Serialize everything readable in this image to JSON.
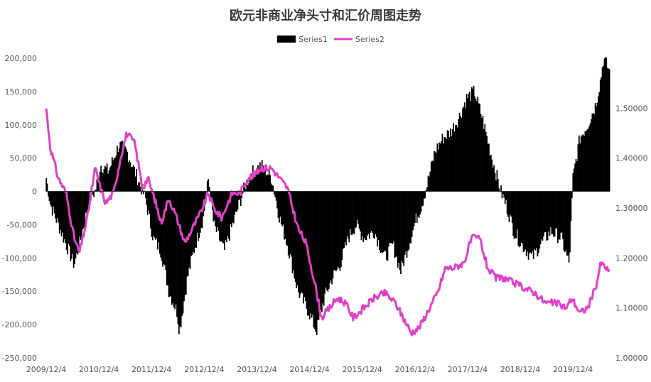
{
  "chart_data": {
    "type": "bar",
    "title": "欧元非商业净头寸和汇价周图走势",
    "legend_position": "top-center",
    "grid": false,
    "x_ticks": [
      "2009/12/4",
      "2010/12/4",
      "2011/12/4",
      "2012/12/4",
      "2013/12/4",
      "2014/12/4",
      "2015/12/4",
      "2016/12/4",
      "2017/12/4",
      "2018/12/4",
      "2019/12/4"
    ],
    "y_left": {
      "range": [
        -250000,
        200000
      ],
      "ticks": [
        200000,
        150000,
        100000,
        50000,
        0,
        -50000,
        -100000,
        -150000,
        -200000,
        -250000
      ],
      "tick_labels": [
        "200,000",
        "150,000",
        "100,000",
        "50,000",
        "0",
        "-50,000",
        "-100,000",
        "-150,000",
        "-200,000",
        "-250,000"
      ]
    },
    "y_right": {
      "range": [
        1.0,
        1.6
      ],
      "ticks": [
        1.5,
        1.4,
        1.3,
        1.2,
        1.1,
        1.0
      ],
      "tick_labels": [
        "1.50000",
        "1.40000",
        "1.30000",
        "1.20000",
        "1.10000",
        "1.00000"
      ]
    },
    "series": [
      {
        "name": "Series1",
        "kind": "bar",
        "axis": "left",
        "color": "#000000",
        "keypoints": [
          [
            2009.92,
            20000
          ],
          [
            2010.0,
            -20000
          ],
          [
            2010.2,
            -60000
          ],
          [
            2010.45,
            -110000
          ],
          [
            2010.55,
            -80000
          ],
          [
            2010.75,
            -10000
          ],
          [
            2010.85,
            0
          ],
          [
            2010.95,
            40000
          ],
          [
            2011.1,
            30000
          ],
          [
            2011.3,
            70000
          ],
          [
            2011.45,
            60000
          ],
          [
            2011.6,
            30000
          ],
          [
            2011.8,
            -10000
          ],
          [
            2011.95,
            -70000
          ],
          [
            2012.1,
            -90000
          ],
          [
            2012.25,
            -150000
          ],
          [
            2012.4,
            -180000
          ],
          [
            2012.45,
            -210000
          ],
          [
            2012.6,
            -130000
          ],
          [
            2012.75,
            -80000
          ],
          [
            2012.9,
            -40000
          ],
          [
            2013.0,
            20000
          ],
          [
            2013.1,
            -50000
          ],
          [
            2013.3,
            -90000
          ],
          [
            2013.5,
            -40000
          ],
          [
            2013.7,
            10000
          ],
          [
            2013.85,
            30000
          ],
          [
            2014.0,
            40000
          ],
          [
            2014.2,
            20000
          ],
          [
            2014.35,
            -40000
          ],
          [
            2014.5,
            -80000
          ],
          [
            2014.7,
            -150000
          ],
          [
            2014.9,
            -180000
          ],
          [
            2015.05,
            -210000
          ],
          [
            2015.2,
            -160000
          ],
          [
            2015.35,
            -130000
          ],
          [
            2015.5,
            -110000
          ],
          [
            2015.65,
            -70000
          ],
          [
            2015.8,
            -50000
          ],
          [
            2015.95,
            -70000
          ],
          [
            2016.15,
            -60000
          ],
          [
            2016.35,
            -100000
          ],
          [
            2016.5,
            -80000
          ],
          [
            2016.65,
            -120000
          ],
          [
            2016.8,
            -80000
          ],
          [
            2016.95,
            -40000
          ],
          [
            2017.05,
            -20000
          ],
          [
            2017.15,
            10000
          ],
          [
            2017.3,
            60000
          ],
          [
            2017.45,
            80000
          ],
          [
            2017.6,
            90000
          ],
          [
            2017.75,
            110000
          ],
          [
            2017.9,
            140000
          ],
          [
            2018.05,
            150000
          ],
          [
            2018.2,
            110000
          ],
          [
            2018.35,
            60000
          ],
          [
            2018.45,
            30000
          ],
          [
            2018.55,
            0
          ],
          [
            2018.65,
            -20000
          ],
          [
            2018.8,
            -60000
          ],
          [
            2018.95,
            -80000
          ],
          [
            2019.15,
            -100000
          ],
          [
            2019.3,
            -80000
          ],
          [
            2019.5,
            -60000
          ],
          [
            2019.7,
            -70000
          ],
          [
            2019.85,
            -110000
          ],
          [
            2019.92,
            20000
          ],
          [
            2020.05,
            80000
          ],
          [
            2020.2,
            100000
          ],
          [
            2020.35,
            130000
          ],
          [
            2020.45,
            170000
          ],
          [
            2020.5,
            200000
          ],
          [
            2020.62,
            180000
          ]
        ]
      },
      {
        "name": "Series2",
        "kind": "line",
        "axis": "right",
        "color": "#e040c8",
        "keypoints": [
          [
            2009.92,
            1.5
          ],
          [
            2010.0,
            1.42
          ],
          [
            2010.15,
            1.36
          ],
          [
            2010.3,
            1.33
          ],
          [
            2010.45,
            1.24
          ],
          [
            2010.55,
            1.21
          ],
          [
            2010.7,
            1.28
          ],
          [
            2010.85,
            1.38
          ],
          [
            2010.95,
            1.34
          ],
          [
            2011.05,
            1.31
          ],
          [
            2011.2,
            1.33
          ],
          [
            2011.35,
            1.41
          ],
          [
            2011.45,
            1.45
          ],
          [
            2011.6,
            1.43
          ],
          [
            2011.75,
            1.34
          ],
          [
            2011.85,
            1.36
          ],
          [
            2012.0,
            1.31
          ],
          [
            2012.1,
            1.27
          ],
          [
            2012.25,
            1.32
          ],
          [
            2012.4,
            1.28
          ],
          [
            2012.55,
            1.23
          ],
          [
            2012.7,
            1.26
          ],
          [
            2012.85,
            1.29
          ],
          [
            2013.0,
            1.33
          ],
          [
            2013.1,
            1.3
          ],
          [
            2013.25,
            1.28
          ],
          [
            2013.45,
            1.33
          ],
          [
            2013.6,
            1.33
          ],
          [
            2013.75,
            1.36
          ],
          [
            2013.9,
            1.37
          ],
          [
            2014.0,
            1.38
          ],
          [
            2014.2,
            1.38
          ],
          [
            2014.35,
            1.36
          ],
          [
            2014.5,
            1.34
          ],
          [
            2014.7,
            1.26
          ],
          [
            2014.85,
            1.23
          ],
          [
            2015.0,
            1.16
          ],
          [
            2015.15,
            1.08
          ],
          [
            2015.3,
            1.1
          ],
          [
            2015.45,
            1.12
          ],
          [
            2015.6,
            1.11
          ],
          [
            2015.75,
            1.08
          ],
          [
            2015.95,
            1.1
          ],
          [
            2016.15,
            1.12
          ],
          [
            2016.35,
            1.13
          ],
          [
            2016.55,
            1.11
          ],
          [
            2016.7,
            1.08
          ],
          [
            2016.85,
            1.05
          ],
          [
            2017.0,
            1.06
          ],
          [
            2017.15,
            1.09
          ],
          [
            2017.35,
            1.13
          ],
          [
            2017.5,
            1.18
          ],
          [
            2017.65,
            1.18
          ],
          [
            2017.85,
            1.19
          ],
          [
            2018.0,
            1.24
          ],
          [
            2018.15,
            1.24
          ],
          [
            2018.3,
            1.18
          ],
          [
            2018.45,
            1.16
          ],
          [
            2018.6,
            1.16
          ],
          [
            2018.8,
            1.15
          ],
          [
            2019.0,
            1.14
          ],
          [
            2019.2,
            1.13
          ],
          [
            2019.4,
            1.11
          ],
          [
            2019.6,
            1.11
          ],
          [
            2019.8,
            1.1
          ],
          [
            2019.9,
            1.12
          ],
          [
            2020.05,
            1.09
          ],
          [
            2020.2,
            1.1
          ],
          [
            2020.35,
            1.14
          ],
          [
            2020.45,
            1.19
          ],
          [
            2020.55,
            1.18
          ],
          [
            2020.62,
            1.17
          ]
        ]
      }
    ]
  }
}
